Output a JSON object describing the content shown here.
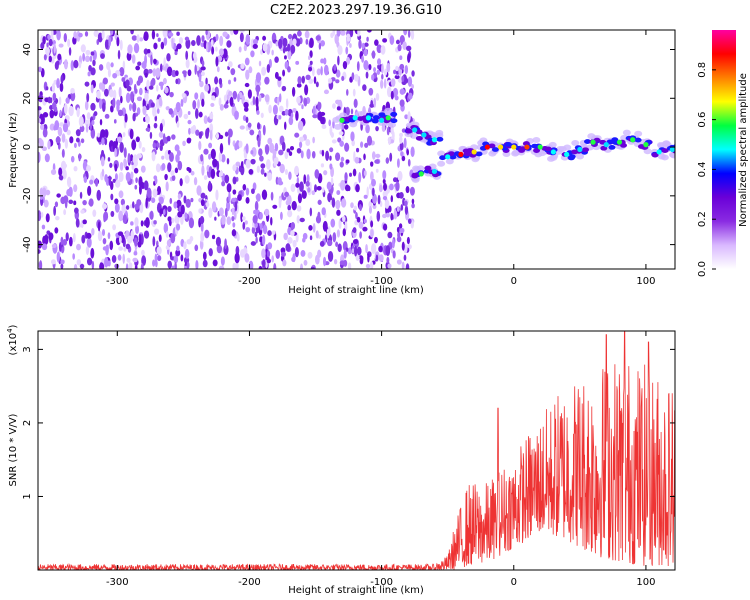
{
  "title": "C2E2.2023.297.19.36.G10",
  "chart_data": [
    {
      "type": "heatmap",
      "panel": "spectrogram",
      "xlabel": "Height of straight line (km)",
      "ylabel": "Frequency (Hz)",
      "xlim": [
        -360,
        122
      ],
      "ylim": [
        -50,
        48
      ],
      "xticks": [
        -300,
        -200,
        -100,
        0,
        100
      ],
      "xtick_labels": [
        "-300",
        "-200",
        "-100",
        "0",
        "100"
      ],
      "yticks": [
        -40,
        -20,
        0,
        20,
        40
      ],
      "ytick_labels": [
        "-40",
        "-20",
        "0",
        "20",
        "40"
      ],
      "noise_region_x": [
        -360,
        -76
      ],
      "colorbar": {
        "label": "Normalized spectral amplitude",
        "range": [
          0,
          0.96
        ],
        "ticks": [
          0,
          0.2,
          0.4,
          0.6,
          0.8
        ],
        "tick_labels": [
          "0.0",
          "0.2",
          "0.4",
          "0.6",
          "0.8"
        ],
        "colormap": [
          "#ffffff",
          "#d9b8ff",
          "#8a2be2",
          "#6a00d8",
          "#0000ff",
          "#00ffff",
          "#00ff40",
          "#ffff00",
          "#ff8000",
          "#ff0000",
          "#ff00a0"
        ]
      },
      "ridge": [
        {
          "x": -130,
          "f": 11
        },
        {
          "x": -120,
          "f": 12
        },
        {
          "x": -110,
          "f": 12
        },
        {
          "x": -100,
          "f": 11
        },
        {
          "x": -95,
          "f": 12
        },
        {
          "x": -75,
          "f": 7
        },
        {
          "x": -68,
          "f": 5
        },
        {
          "x": -60,
          "f": 3
        },
        {
          "x": -70,
          "f": -11
        },
        {
          "x": -60,
          "f": -10
        },
        {
          "x": -50,
          "f": -4
        },
        {
          "x": -40,
          "f": -3
        },
        {
          "x": -30,
          "f": -2
        },
        {
          "x": -20,
          "f": 0
        },
        {
          "x": -10,
          "f": 0
        },
        {
          "x": 0,
          "f": 0
        },
        {
          "x": 10,
          "f": 0
        },
        {
          "x": 20,
          "f": 0
        },
        {
          "x": 30,
          "f": -2
        },
        {
          "x": 40,
          "f": -3
        },
        {
          "x": 50,
          "f": -1
        },
        {
          "x": 60,
          "f": 2
        },
        {
          "x": 70,
          "f": 1
        },
        {
          "x": 80,
          "f": 2
        },
        {
          "x": 90,
          "f": 3
        },
        {
          "x": 100,
          "f": 1
        },
        {
          "x": 110,
          "f": -2
        },
        {
          "x": 120,
          "f": -1
        }
      ]
    },
    {
      "type": "line",
      "panel": "snr",
      "xlabel": "Height of straight line (km)",
      "ylabel": "SNR (10 * V/V)",
      "y_scale_label": "(x10",
      "y_scale_exp": "4",
      "y_scale_close": ")",
      "xlim": [
        -360,
        122
      ],
      "ylim": [
        0,
        3.25
      ],
      "xticks": [
        -300,
        -200,
        -100,
        0,
        100
      ],
      "xtick_labels": [
        "-300",
        "-200",
        "-100",
        "0",
        "100"
      ],
      "yticks": [
        1,
        2,
        3
      ],
      "ytick_labels": [
        "1",
        "2",
        "3"
      ],
      "color": "#ee3333",
      "envelope": [
        {
          "x": -360,
          "lo": 0.0,
          "hi": 0.08
        },
        {
          "x": -60,
          "lo": 0.0,
          "hi": 0.08
        },
        {
          "x": -50,
          "lo": 0.0,
          "hi": 0.2
        },
        {
          "x": -45,
          "lo": 0.0,
          "hi": 0.6
        },
        {
          "x": -35,
          "lo": 0.05,
          "hi": 1.2
        },
        {
          "x": -20,
          "lo": 0.1,
          "hi": 1.2
        },
        {
          "x": 0,
          "lo": 0.3,
          "hi": 1.6
        },
        {
          "x": 20,
          "lo": 0.5,
          "hi": 2.1
        },
        {
          "x": 40,
          "lo": 0.4,
          "hi": 2.6
        },
        {
          "x": 60,
          "lo": 0.2,
          "hi": 2.8
        },
        {
          "x": 80,
          "lo": 0.1,
          "hi": 3.0
        },
        {
          "x": 100,
          "lo": 0.05,
          "hi": 2.8
        },
        {
          "x": 122,
          "lo": 0.05,
          "hi": 2.6
        }
      ],
      "spikes": [
        {
          "x": -12,
          "y": 2.2
        },
        {
          "x": 70,
          "y": 3.2
        },
        {
          "x": 84,
          "y": 3.25
        },
        {
          "x": 102,
          "y": 3.1
        }
      ]
    }
  ]
}
